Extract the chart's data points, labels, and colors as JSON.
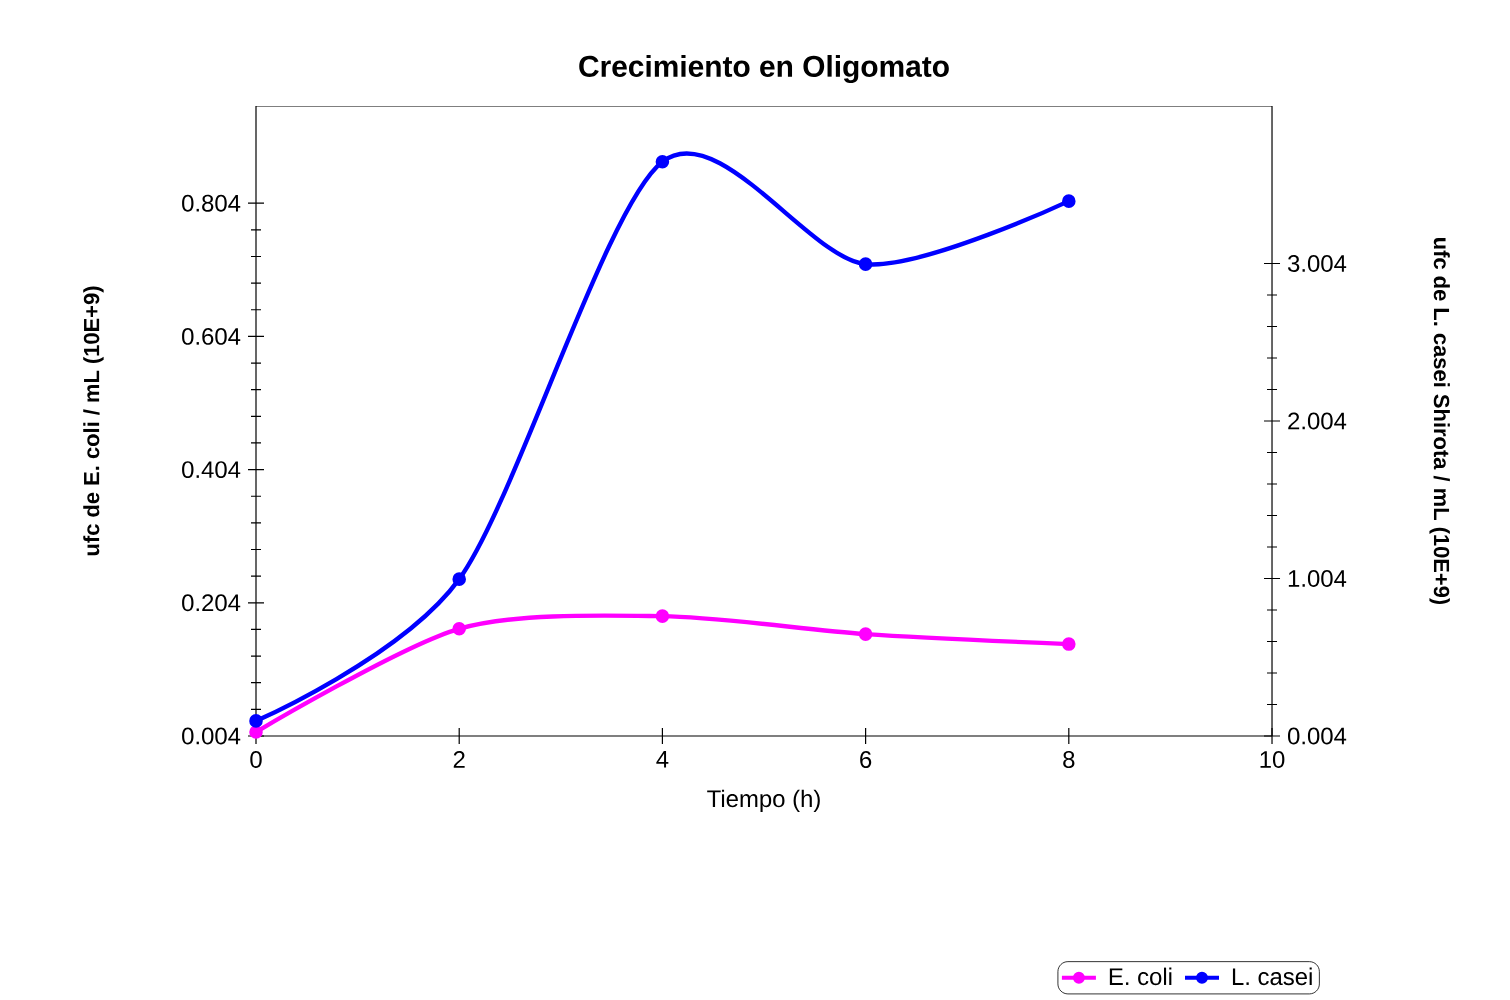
{
  "chart_data": {
    "type": "line",
    "title": "Crecimiento en Oligomato",
    "xlabel": "Tiempo (h)",
    "ylabel": "ufc de E. coli / mL  (10E+9)",
    "y2label": "ufc de L. casei Shirota / mL (10E+9)",
    "x": [
      0,
      2,
      4,
      6,
      8
    ],
    "series": [
      {
        "name": "E. coli",
        "color": "#ff00ff",
        "values": [
          0.01,
          0.165,
          0.184,
          0.157,
          0.142
        ]
      },
      {
        "name": "L. casei",
        "color": "#0000ff",
        "axis": "y2",
        "values": [
          0.1,
          1.0,
          3.65,
          3.0,
          3.4
        ]
      }
    ],
    "xlim": [
      0,
      10
    ],
    "xticks": [
      0,
      2,
      4,
      6,
      8,
      10
    ],
    "ylim": [
      0.004,
      0.95
    ],
    "yticks": [
      0.004,
      0.204,
      0.404,
      0.604,
      0.804
    ],
    "y2lim": [
      0.004,
      4.004
    ],
    "y2ticks": [
      0.004,
      1.004,
      2.004,
      3.004
    ],
    "grid": false,
    "legend": "bottom right",
    "marker": "circle",
    "line_style": "solid"
  }
}
